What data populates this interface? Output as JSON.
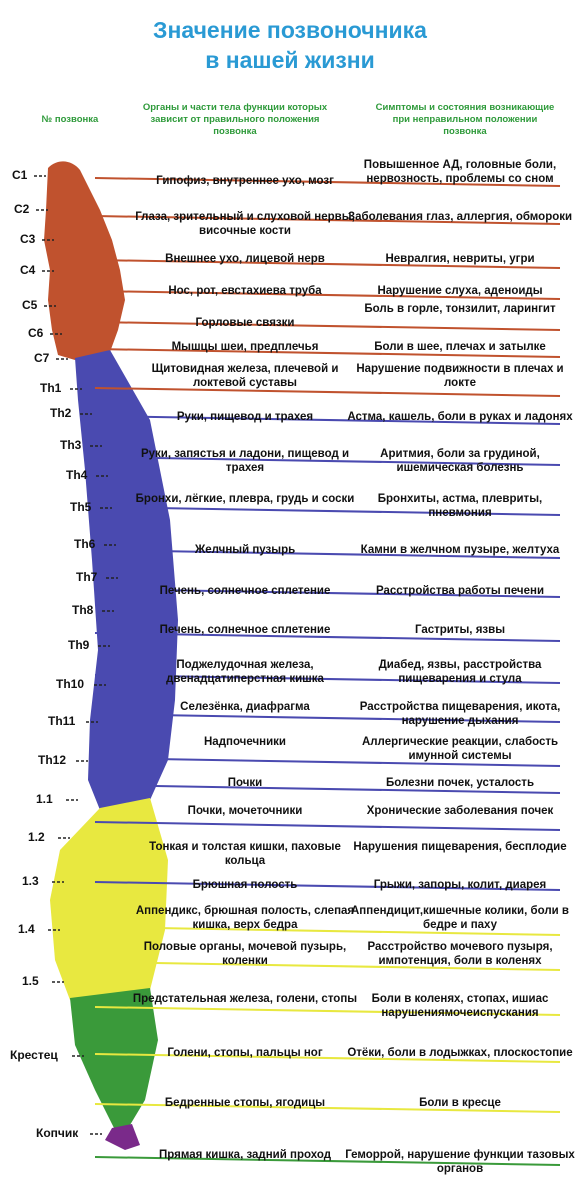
{
  "title": {
    "line1": "Значение  позвоночника",
    "line2": "в нашей жизни"
  },
  "headers": {
    "col1": "№ позвонка",
    "col2": "Органы и части тела функции которых зависит от правильного положения позвонка",
    "col3": "Симптомы и состояния возникающие при неправильном положении позвонка"
  },
  "colors": {
    "cervical": "#c0522e",
    "thoracic": "#4a4ab0",
    "lumbar": "#e8e840",
    "sacral": "#3a9a3a",
    "coccyx": "#7a2a8a",
    "title": "#2a9ad4",
    "header": "#2e9a3a"
  },
  "rows": [
    {
      "vertebra": "C1",
      "organ": "Гипофиз, внутреннее ухо, мозг",
      "symptom": "Повышенное АД, головные боли, нервозность, проблемы со сном",
      "color": "#c0522e"
    },
    {
      "vertebra": "C2",
      "organ": "Глаза, зрительный и слуховой нервы, височные кости",
      "symptom": "Заболевания глаз, аллергия, обмороки",
      "color": "#c0522e"
    },
    {
      "vertebra": "C3",
      "organ": "Внешнее ухо, лицевой нерв",
      "symptom": "Невралгия, невриты, угри",
      "color": "#c0522e"
    },
    {
      "vertebra": "C4",
      "organ": "Нос, рот, евстахиева труба",
      "symptom": "Нарушение слуха, аденоиды",
      "color": "#c0522e"
    },
    {
      "vertebra": "C5",
      "organ": "Горловые связки",
      "symptom": "Боль в горле, тонзилит, ларингит",
      "color": "#c0522e"
    },
    {
      "vertebra": "C6",
      "organ": "Мышцы шеи, предплечья",
      "symptom": "Боли в шее, плечах и затылке",
      "color": "#c0522e"
    },
    {
      "vertebra": "C7",
      "organ": "Щитовидная железа, плечевой и локтевой суставы",
      "symptom": "Нарушение подвижности в плечах и локте",
      "color": "#c0522e"
    },
    {
      "vertebra": "Th1",
      "organ": "Руки, пищевод и трахея",
      "symptom": "Астма, кашель, боли в руках и ладонях",
      "color": "#4a4ab0"
    },
    {
      "vertebra": "Th2",
      "organ": "Руки, запястья и ладони, пищевод и трахея",
      "symptom": "Аритмия, боли за грудиной, ишемическая болезнь",
      "color": "#4a4ab0"
    },
    {
      "vertebra": "Th3",
      "organ": "Бронхи, лёгкие, плевра, грудь и соски",
      "symptom": "Бронхиты, астма, плевриты, пневмония",
      "color": "#4a4ab0"
    },
    {
      "vertebra": "Th4",
      "organ": "Желчный пузырь",
      "symptom": "Камни в желчном пузыре, желтуха",
      "color": "#4a4ab0"
    },
    {
      "vertebra": "Th5",
      "organ": "Печень, солнечное сплетение",
      "symptom": "Расстройства работы печени",
      "color": "#4a4ab0"
    },
    {
      "vertebra": "Th6",
      "organ": "Печень, солнечное сплетение",
      "symptom": "Гастриты, язвы",
      "color": "#4a4ab0"
    },
    {
      "vertebra": "Th7",
      "organ": "Поджелудочная железа, двенадцатиперстная кишка",
      "symptom": "Диабед, язвы, расстройства пищеварения и стула",
      "color": "#4a4ab0"
    },
    {
      "vertebra": "Th8",
      "organ": "Селезёнка, диафрагма",
      "symptom": "Расстройства пищеварения, икота, нарушение дыхания",
      "color": "#4a4ab0"
    },
    {
      "vertebra": "Th9",
      "organ": "Надпочечники",
      "symptom": "Аллергические реакции, слабость имунной системы",
      "color": "#4a4ab0"
    },
    {
      "vertebra": "Th10",
      "organ": "Почки",
      "symptom": "Болезни почек, усталость",
      "color": "#4a4ab0"
    },
    {
      "vertebra": "Th11",
      "organ": "Почки, мочеточники",
      "symptom": "Хронические заболевания почек",
      "color": "#4a4ab0"
    },
    {
      "vertebra": "Th12",
      "organ": "Тонкая и толстая кишки, паховые кольца",
      "symptom": "Нарушения пищеварения, бесплодие",
      "color": "#4a4ab0"
    },
    {
      "vertebra": "1.1",
      "organ": "Брюшная полость",
      "symptom": "Грыжи, запоры, колит, диарея",
      "color": "#e8e840"
    },
    {
      "vertebra": "1.2",
      "organ": "Аппендикс, брюшная полость, слепая кишка, верх бедра",
      "symptom": "Аппендицит,кишечные колики, боли в бедре и паху",
      "color": "#e8e840"
    },
    {
      "vertebra": "1.3",
      "organ": "Половые органы, мочевой пузырь, коленки",
      "symptom": "Расстройство мочевого пузыря, импотенция, боли в коленях",
      "color": "#e8e840"
    },
    {
      "vertebra": "1.4",
      "organ": "Предстательная железа, голени, стопы",
      "symptom": "Боли в коленях, стопах, ишиас нарушениямочеиспускания",
      "color": "#e8e840"
    },
    {
      "vertebra": "1.5",
      "organ": "Голени, стопы, пальцы ног",
      "symptom": "Отёки, боли в лодыжках, плоскостопие",
      "color": "#e8e840"
    },
    {
      "vertebra": "Крестец",
      "organ": "Бедренные стопы, ягодицы",
      "symptom": "Боли в кресце",
      "color": "#3a9a3a"
    },
    {
      "vertebra": "Копчик",
      "organ": "Прямая кишка, задний проход",
      "symptom": "Геморрой, нарушение функции тазовых органов",
      "color": "#7a2a8a"
    }
  ]
}
